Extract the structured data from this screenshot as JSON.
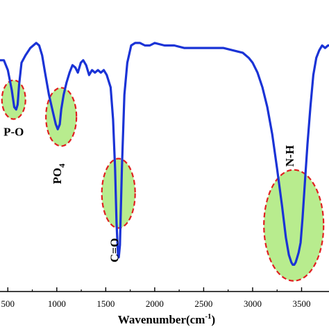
{
  "chart_data": {
    "type": "line",
    "title": "",
    "xlabel": "Wavenumber(cm",
    "xlabel_superscript": "-1",
    "xlabel_close": ")",
    "ylabel": "",
    "xlim": [
      420,
      3780
    ],
    "ylim": [
      0,
      100
    ],
    "xticks": [
      500,
      1000,
      1500,
      2000,
      2500,
      3000,
      3500
    ],
    "xtick_labels": [
      "500",
      "1000",
      "1500",
      "2000",
      "2500",
      "3000",
      "3500"
    ],
    "grid": false,
    "series": [
      {
        "color": "#1a33d6",
        "x": [
          420,
          460,
          500,
          540,
          565,
          585,
          600,
          615,
          640,
          680,
          730,
          790,
          820,
          850,
          880,
          920,
          960,
          990,
          1010,
          1030,
          1045,
          1070,
          1100,
          1130,
          1160,
          1190,
          1215,
          1245,
          1270,
          1300,
          1330,
          1360,
          1390,
          1420,
          1450,
          1480,
          1510,
          1550,
          1575,
          1595,
          1610,
          1625,
          1633,
          1645,
          1665,
          1690,
          1720,
          1760,
          1800,
          1850,
          1900,
          1950,
          2000,
          2100,
          2200,
          2300,
          2400,
          2500,
          2600,
          2700,
          2800,
          2900,
          2960,
          3000,
          3050,
          3100,
          3150,
          3200,
          3250,
          3300,
          3340,
          3370,
          3395,
          3410,
          3425,
          3440,
          3455,
          3470,
          3490,
          3510,
          3535,
          3560,
          3590,
          3620,
          3650,
          3680,
          3710,
          3740,
          3770,
          3780
        ],
        "y": [
          84,
          84,
          80,
          72,
          65,
          64,
          66,
          74,
          83,
          86,
          89,
          91,
          90,
          86,
          79,
          70,
          63,
          58,
          56,
          58,
          64,
          70,
          75,
          79,
          82,
          81,
          79,
          83,
          84,
          82,
          78,
          80,
          79,
          80,
          79,
          80,
          78,
          73,
          60,
          40,
          18,
          5,
          4,
          9,
          40,
          70,
          83,
          90,
          91,
          91,
          90,
          90,
          91,
          90,
          90,
          89,
          89,
          89,
          89,
          89,
          88,
          87,
          85,
          83,
          79,
          73,
          65,
          54,
          40,
          25,
          12,
          5,
          2,
          1,
          1,
          2,
          4,
          6,
          10,
          20,
          35,
          50,
          65,
          78,
          85,
          88,
          90,
          89,
          90,
          90
        ]
      }
    ],
    "annotations": [
      {
        "label": "P-O",
        "x": 560,
        "y": 68,
        "rx": 28,
        "ry": 28
      },
      {
        "label": "PO",
        "subscript": "4",
        "x": 1045,
        "y": 61,
        "rx": 90,
        "ry": 42
      },
      {
        "label": "C=O",
        "x": 1630,
        "y": 30,
        "rx": 80,
        "ry": 50
      },
      {
        "label": "N-H",
        "x": 3420,
        "y": 17,
        "rx": 190,
        "ry": 80
      }
    ],
    "annotation_style": {
      "fill": "#b8ec8e",
      "stroke": "#e02020"
    }
  }
}
